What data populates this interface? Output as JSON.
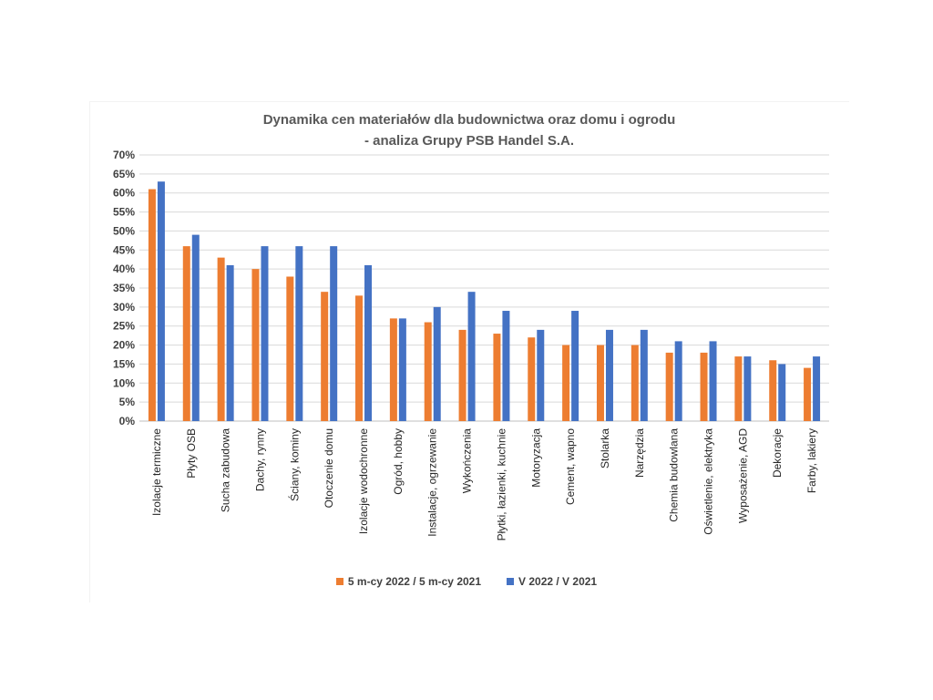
{
  "chart_data": {
    "type": "bar",
    "title_line1": "Dynamika cen materiałów dla budownictwa oraz domu i ogrodu",
    "title_line2": "- analiza Grupy PSB Handel S.A.",
    "categories": [
      "Izolacje termiczne",
      "Płyty OSB",
      "Sucha zabudowa",
      "Dachy, rynny",
      "Ściany, kominy",
      "Otoczenie domu",
      "Izolacje wodochronne",
      "Ogród, hobby",
      "Instalacje, ogrzewanie",
      "Wykończenia",
      "Płytki, łazienki, kuchnie",
      "Motoryzacja",
      "Cement, wapno",
      "Stolarka",
      "Narzędzia",
      "Chemia budowlana",
      "Oświetlenie, elektryka",
      "Wyposażenie, AGD",
      "Dekoracje",
      "Farby, lakiery"
    ],
    "series": [
      {
        "name": "5 m-cy 2022 / 5 m-cy 2021",
        "color": "#ed7d31",
        "values": [
          61,
          46,
          43,
          40,
          38,
          34,
          33,
          27,
          26,
          24,
          23,
          22,
          20,
          20,
          20,
          18,
          18,
          17,
          16,
          14
        ]
      },
      {
        "name": "V 2022 / V 2021",
        "color": "#4472c4",
        "values": [
          63,
          49,
          41,
          46,
          46,
          46,
          41,
          27,
          30,
          34,
          29,
          24,
          29,
          24,
          24,
          21,
          21,
          17,
          15,
          17
        ]
      }
    ],
    "yticks": [
      "0%",
      "5%",
      "10%",
      "15%",
      "20%",
      "25%",
      "30%",
      "35%",
      "40%",
      "45%",
      "50%",
      "55%",
      "60%",
      "65%",
      "70%"
    ],
    "ylim": [
      0,
      70
    ],
    "grid": true,
    "legend_position": "bottom"
  }
}
